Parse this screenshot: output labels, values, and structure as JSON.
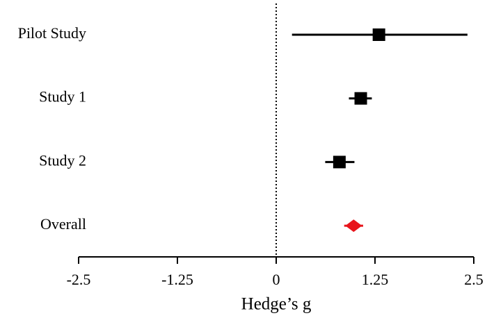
{
  "chart_data": {
    "type": "forest",
    "categories": [
      "Pilot Study",
      "Study 1",
      "Study 2",
      "Overall"
    ],
    "values": [
      1.3,
      1.07,
      0.8,
      0.98
    ],
    "lower": [
      0.2,
      0.92,
      0.62,
      0.86
    ],
    "upper": [
      2.42,
      1.21,
      0.99,
      1.1
    ],
    "colors": [
      "#000000",
      "#000000",
      "#000000",
      "#e8141b"
    ],
    "markers": [
      "square",
      "square",
      "square",
      "diamond"
    ],
    "x_label": "Hedge’s g",
    "xlim": [
      -2.5,
      2.5
    ],
    "xticks": [
      -2.5,
      -1.25,
      0,
      1.25,
      2.5
    ],
    "reference_line": 0
  }
}
